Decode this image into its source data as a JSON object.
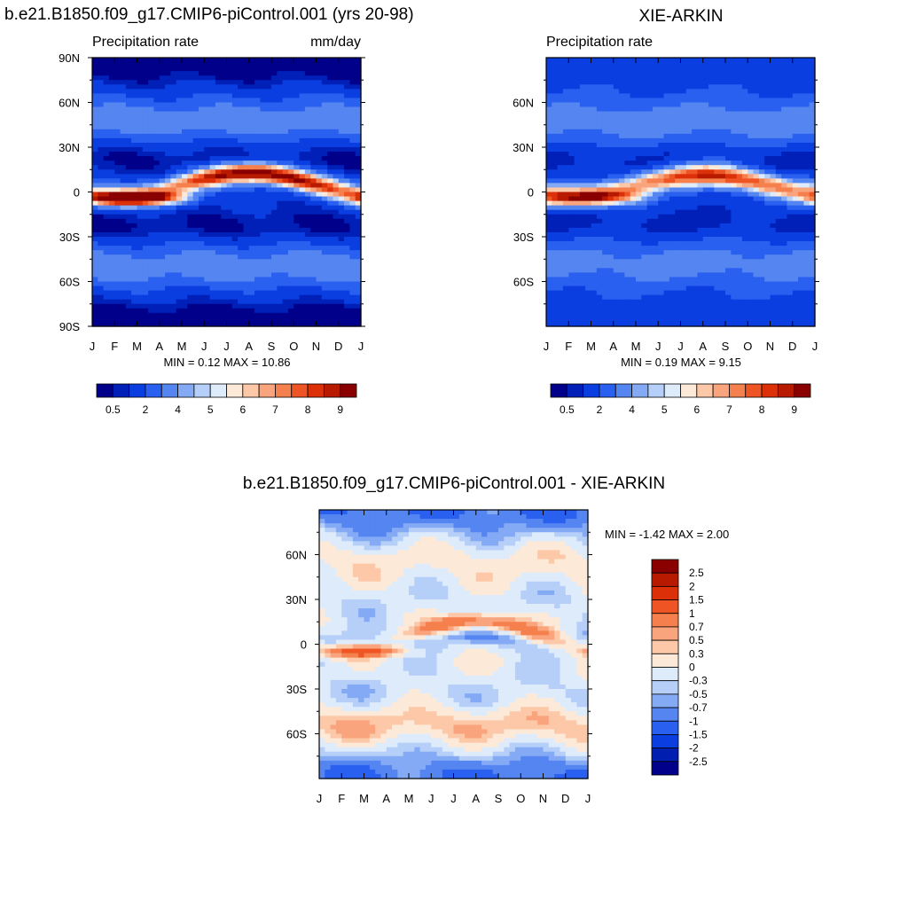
{
  "chart_data": [
    {
      "type": "heatmap",
      "title": "b.e21.B1850.f09_g17.CMIP6-piControl.001 (yrs 20-98)",
      "left_label": "Precipitation rate",
      "right_label": "mm/day",
      "xlabel": "",
      "ylabel": "",
      "x_ticks": [
        "J",
        "F",
        "M",
        "A",
        "M",
        "J",
        "J",
        "A",
        "S",
        "O",
        "N",
        "D",
        "J"
      ],
      "y_ticks": [
        "90N",
        "60N",
        "30N",
        "0",
        "30S",
        "60S",
        "90S"
      ],
      "stats_text": "MIN =   0.12 MAX =  10.86",
      "colorbar_labels": [
        "0.5",
        "2",
        "4",
        "5",
        "6",
        "7",
        "8",
        "9"
      ],
      "features": [
        {
          "name": "itcz-peak",
          "lat": 8,
          "month_center": "Aug",
          "value": 10.86
        },
        {
          "name": "sh-itcz-branch",
          "lat": -4,
          "month_center": "Mar",
          "value": 7.5
        },
        {
          "name": "storm-track-nh",
          "lat": 45,
          "value": 3.0
        },
        {
          "name": "storm-track-sh",
          "lat": -50,
          "value": 3.0
        },
        {
          "name": "subtropical-dry-nh",
          "lat": 22,
          "value": 0.5
        },
        {
          "name": "subtropical-dry-sh",
          "lat": -22,
          "value": 0.5
        }
      ],
      "zlim": [
        0.12,
        10.86
      ]
    },
    {
      "type": "heatmap",
      "title": "XIE-ARKIN",
      "left_label": "Precipitation rate",
      "x_ticks": [
        "J",
        "F",
        "M",
        "A",
        "M",
        "J",
        "J",
        "A",
        "S",
        "O",
        "N",
        "D",
        "J"
      ],
      "y_ticks": [
        "60N",
        "30N",
        "0",
        "30S",
        "60S"
      ],
      "stats_text": "MIN =   0.19 MAX =   9.15",
      "colorbar_labels": [
        "0.5",
        "2",
        "4",
        "5",
        "6",
        "7",
        "8",
        "9"
      ],
      "features": [
        {
          "name": "itcz-peak",
          "lat": 8,
          "month_center": "Jul",
          "value": 9.15
        },
        {
          "name": "sh-itcz-branch",
          "lat": -3,
          "month_center": "Mar",
          "value": 6.2
        }
      ],
      "zlim": [
        0.19,
        9.15
      ]
    },
    {
      "type": "heatmap",
      "title": "b.e21.B1850.f09_g17.CMIP6-piControl.001 - XIE-ARKIN",
      "x_ticks": [
        "J",
        "F",
        "M",
        "A",
        "M",
        "J",
        "J",
        "A",
        "S",
        "O",
        "N",
        "D",
        "J"
      ],
      "y_ticks": [
        "60N",
        "30N",
        "0",
        "30S",
        "60S"
      ],
      "stats_text": "MIN =  -1.42 MAX =   2.00",
      "colorbar_labels": [
        "2.5",
        "2",
        "1.5",
        "1",
        "0.7",
        "0.5",
        "0.3",
        "0",
        "-0.3",
        "-0.5",
        "-0.7",
        "-1",
        "-1.5",
        "-2",
        "-2.5"
      ],
      "zlim": [
        -1.42,
        2.0
      ]
    }
  ],
  "colormaps": {
    "precip": [
      "#00008a",
      "#0020b8",
      "#0a3ee0",
      "#2a60f0",
      "#5585f0",
      "#85aaf5",
      "#b5cff8",
      "#deebfb",
      "#fde9d8",
      "#fcc8a8",
      "#f9a47c",
      "#f6804d",
      "#ee5424",
      "#dc3008",
      "#b81a00",
      "#8a0000"
    ],
    "diff": [
      "#00008a",
      "#001eaf",
      "#0a3ee0",
      "#2a60f0",
      "#5585f0",
      "#85aaf5",
      "#b5cff8",
      "#deebfb",
      "#fde9d8",
      "#fcc8a8",
      "#f9a47c",
      "#f6804d",
      "#ee5424",
      "#dc3008",
      "#b81a00",
      "#8a0000"
    ]
  }
}
